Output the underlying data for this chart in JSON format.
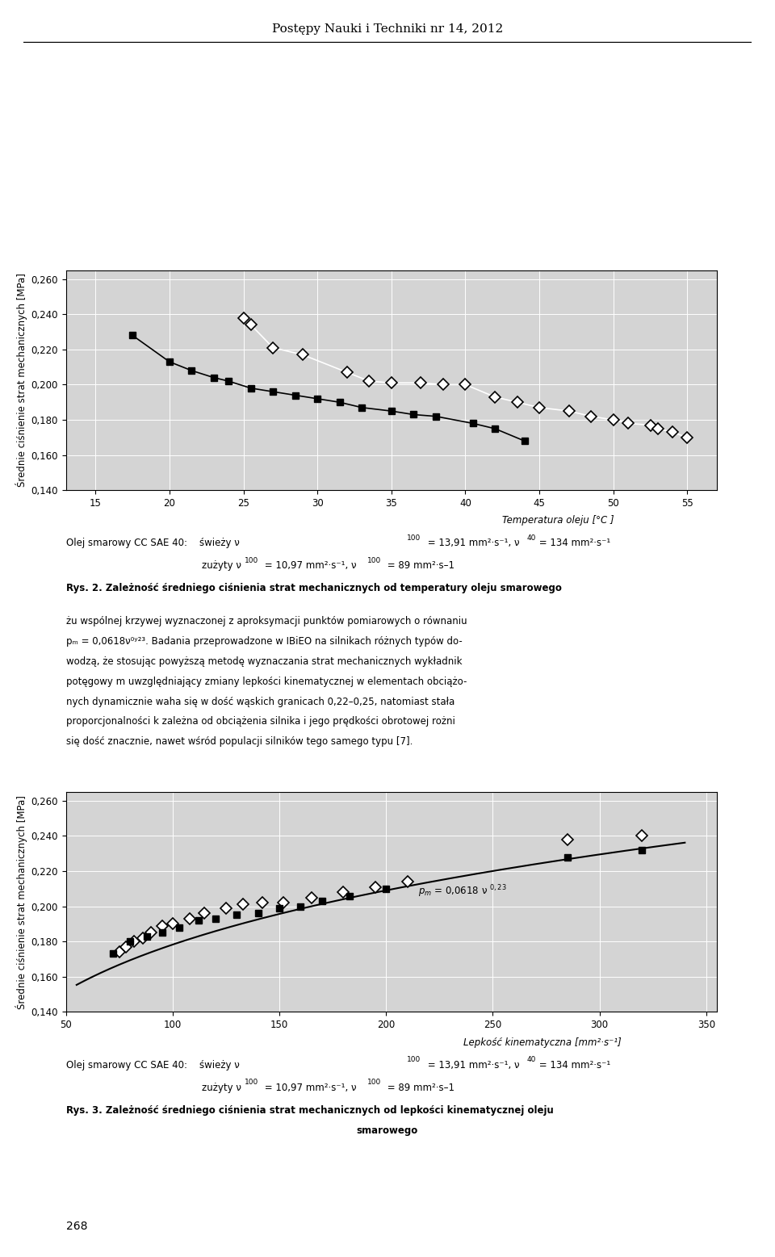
{
  "page_title": "Postępy Nauki i Techniki nr 14, 2012",
  "chart1": {
    "ylabel": "Średnie ciśnienie strat mechanicznych [MPa]",
    "xlabel": "Temperatura oleju [°C ]",
    "ylim": [
      0.14,
      0.265
    ],
    "xlim": [
      13,
      57
    ],
    "yticks": [
      0.14,
      0.16,
      0.18,
      0.2,
      0.22,
      0.24,
      0.26
    ],
    "xticks": [
      15,
      20,
      25,
      30,
      35,
      40,
      45,
      50,
      55
    ],
    "fresh_diamonds": [
      [
        25.0,
        0.238
      ],
      [
        25.5,
        0.234
      ],
      [
        27.0,
        0.221
      ],
      [
        29.0,
        0.217
      ],
      [
        32.0,
        0.207
      ],
      [
        33.5,
        0.202
      ],
      [
        35.0,
        0.201
      ],
      [
        37.0,
        0.201
      ],
      [
        38.5,
        0.2
      ],
      [
        40.0,
        0.2
      ],
      [
        42.0,
        0.193
      ],
      [
        43.5,
        0.19
      ],
      [
        45.0,
        0.187
      ],
      [
        47.0,
        0.185
      ],
      [
        48.5,
        0.182
      ],
      [
        50.0,
        0.18
      ],
      [
        51.0,
        0.178
      ],
      [
        52.5,
        0.177
      ],
      [
        53.0,
        0.175
      ],
      [
        54.0,
        0.173
      ],
      [
        55.0,
        0.17
      ]
    ],
    "used_squares": [
      [
        17.5,
        0.228
      ],
      [
        20.0,
        0.213
      ],
      [
        21.5,
        0.208
      ],
      [
        23.0,
        0.204
      ],
      [
        24.0,
        0.202
      ],
      [
        25.5,
        0.198
      ],
      [
        27.0,
        0.196
      ],
      [
        28.5,
        0.194
      ],
      [
        30.0,
        0.192
      ],
      [
        31.5,
        0.19
      ],
      [
        33.0,
        0.187
      ],
      [
        35.0,
        0.185
      ],
      [
        36.5,
        0.183
      ],
      [
        38.0,
        0.182
      ],
      [
        40.5,
        0.178
      ],
      [
        42.0,
        0.175
      ],
      [
        44.0,
        0.168
      ]
    ]
  },
  "chart2": {
    "ylabel": "Średnie ciśnienie strat mechanicznych [MPa]",
    "xlabel": "Lepkość kinematyczna [mm²·s⁻¹]",
    "ylim": [
      0.14,
      0.265
    ],
    "xlim": [
      50,
      355
    ],
    "yticks": [
      0.14,
      0.16,
      0.18,
      0.2,
      0.22,
      0.24,
      0.26
    ],
    "xticks": [
      50,
      100,
      150,
      200,
      250,
      300,
      350
    ],
    "fresh_diamonds": [
      [
        75.0,
        0.174
      ],
      [
        78.0,
        0.177
      ],
      [
        82.0,
        0.18
      ],
      [
        86.0,
        0.182
      ],
      [
        90.0,
        0.185
      ],
      [
        95.0,
        0.189
      ],
      [
        100.0,
        0.19
      ],
      [
        108.0,
        0.193
      ],
      [
        115.0,
        0.196
      ],
      [
        125.0,
        0.199
      ],
      [
        133.0,
        0.201
      ],
      [
        142.0,
        0.202
      ],
      [
        152.0,
        0.202
      ],
      [
        165.0,
        0.205
      ],
      [
        180.0,
        0.208
      ],
      [
        195.0,
        0.211
      ],
      [
        210.0,
        0.214
      ],
      [
        285.0,
        0.238
      ],
      [
        320.0,
        0.24
      ]
    ],
    "used_squares": [
      [
        72.0,
        0.173
      ],
      [
        80.0,
        0.18
      ],
      [
        88.0,
        0.183
      ],
      [
        95.0,
        0.185
      ],
      [
        103.0,
        0.188
      ],
      [
        112.0,
        0.192
      ],
      [
        120.0,
        0.193
      ],
      [
        130.0,
        0.195
      ],
      [
        140.0,
        0.196
      ],
      [
        150.0,
        0.199
      ],
      [
        160.0,
        0.2
      ],
      [
        170.0,
        0.203
      ],
      [
        183.0,
        0.206
      ],
      [
        200.0,
        0.21
      ],
      [
        285.0,
        0.228
      ],
      [
        320.0,
        0.232
      ]
    ]
  },
  "body_text_lines": [
    "żu wspólnej krzywej wyznaczonej z aproksymacji punktów pomiarowych o równaniu",
    "pₘ = 0,0618ν⁰ʸ²³. Badania przeprowadzone w IBiEO na silnikach różnych typów do-",
    "wodzą, że stosując powyższą metodę wyznaczania strat mechanicznych wykładnik",
    "potęgowy m uwzględniający zmiany lepkości kinematycznej w elementach obciążo-",
    "nych dynamicznie waha się w dość wąskich granicach 0,22–0,25, natomiast stała",
    "proporcjonalności k zależna od obciążenia silnika i jego prędkości obrotowej rożni",
    "się dość znacznie, nawet wśród populacji silników tego samego typu [7]."
  ],
  "page_number": "268",
  "bg_color": "#d4d4d4"
}
